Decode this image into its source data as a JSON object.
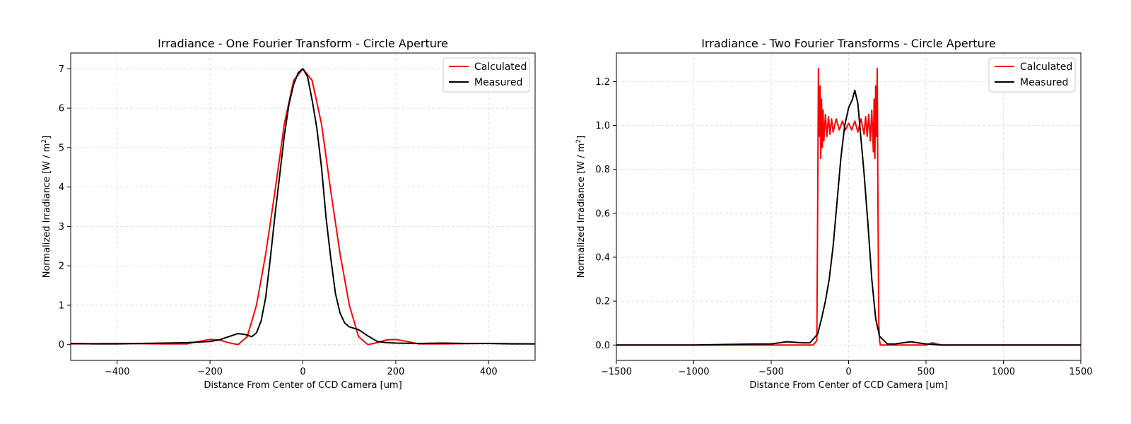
{
  "colors": {
    "calculated": "#ff0000",
    "measured": "#000000"
  },
  "chart_data": [
    {
      "type": "line",
      "title": "Irradiance - One Fourier Transform - Circle Aperture",
      "xlabel": "Distance From Center of CCD Camera [um]",
      "ylabel": "Normalized Irradiance [W / m",
      "ylabel_sup": "2",
      "ylabel_end": "]",
      "xlim": [
        -500,
        500
      ],
      "ylim": [
        -0.4,
        7.4
      ],
      "xticks": [
        -400,
        -200,
        0,
        200,
        400
      ],
      "xtick_labels": [
        "−400",
        "−200",
        "0",
        "200",
        "400"
      ],
      "yticks": [
        0,
        1,
        2,
        3,
        4,
        5,
        6,
        7
      ],
      "ytick_labels": [
        "0",
        "1",
        "2",
        "3",
        "4",
        "5",
        "6",
        "7"
      ],
      "grid": true,
      "legend": "top-right",
      "series": [
        {
          "name": "Calculated",
          "color_key": "calculated",
          "x": [
            -500,
            -400,
            -300,
            -250,
            -220,
            -200,
            -180,
            -160,
            -140,
            -120,
            -100,
            -80,
            -60,
            -40,
            -20,
            0,
            20,
            40,
            60,
            80,
            100,
            120,
            140,
            160,
            180,
            200,
            220,
            250,
            300,
            400,
            500
          ],
          "y": [
            0.02,
            0.03,
            0.02,
            0.02,
            0.09,
            0.13,
            0.12,
            0.05,
            0.0,
            0.2,
            1.0,
            2.3,
            3.9,
            5.6,
            6.7,
            7.0,
            6.7,
            5.6,
            3.9,
            2.3,
            1.0,
            0.2,
            0.0,
            0.05,
            0.12,
            0.13,
            0.09,
            0.02,
            0.02,
            0.03,
            0.02
          ]
        },
        {
          "name": "Measured",
          "color_key": "measured",
          "x": [
            -500,
            -450,
            -400,
            -350,
            -300,
            -250,
            -200,
            -180,
            -160,
            -140,
            -125,
            -110,
            -100,
            -90,
            -80,
            -70,
            -60,
            -50,
            -40,
            -30,
            -20,
            -10,
            0,
            10,
            20,
            30,
            40,
            50,
            60,
            70,
            80,
            90,
            100,
            120,
            140,
            160,
            180,
            200,
            250,
            300,
            350,
            400,
            450,
            500
          ],
          "y": [
            0.03,
            0.02,
            0.02,
            0.03,
            0.04,
            0.05,
            0.08,
            0.12,
            0.2,
            0.28,
            0.26,
            0.2,
            0.3,
            0.6,
            1.2,
            2.2,
            3.3,
            4.3,
            5.3,
            6.1,
            6.6,
            6.9,
            7.0,
            6.8,
            6.2,
            5.5,
            4.5,
            3.2,
            2.2,
            1.3,
            0.8,
            0.55,
            0.45,
            0.38,
            0.22,
            0.08,
            0.05,
            0.04,
            0.03,
            0.04,
            0.03,
            0.03,
            0.02,
            0.02
          ]
        }
      ]
    },
    {
      "type": "line",
      "title": "Irradiance - Two Fourier Transforms - Circle Aperture",
      "xlabel": "Distance From Center of CCD Camera [um]",
      "ylabel": "Normalized Irradiance [W / m",
      "ylabel_sup": "2",
      "ylabel_end": "]",
      "xlim": [
        -1500,
        1500
      ],
      "ylim": [
        -0.07,
        1.33
      ],
      "xticks": [
        -1500,
        -1000,
        -500,
        0,
        500,
        1000,
        1500
      ],
      "xtick_labels": [
        "−1500",
        "−1000",
        "−500",
        "0",
        "500",
        "1000",
        "1500"
      ],
      "yticks": [
        0.0,
        0.2,
        0.4,
        0.6,
        0.8,
        1.0,
        1.2
      ],
      "ytick_labels": [
        "0.0",
        "0.2",
        "0.4",
        "0.6",
        "0.8",
        "1.0",
        "1.2"
      ],
      "grid": true,
      "legend": "top-right",
      "series": [
        {
          "name": "Calculated",
          "color_key": "calculated",
          "x": [
            -1500,
            -1000,
            -500,
            -230,
            -205,
            -200,
            -195,
            -190,
            -185,
            -180,
            -175,
            -170,
            -165,
            -160,
            -150,
            -140,
            -130,
            -120,
            -110,
            -100,
            -80,
            -60,
            -40,
            -20,
            0,
            20,
            40,
            60,
            80,
            100,
            110,
            120,
            130,
            140,
            150,
            160,
            165,
            170,
            175,
            180,
            185,
            190,
            195,
            200,
            205,
            230,
            500,
            540,
            600,
            1000,
            1500
          ],
          "y": [
            0.0,
            0.0,
            0.0,
            0.0,
            0.02,
            0.6,
            1.26,
            0.95,
            1.18,
            0.85,
            1.12,
            0.9,
            1.07,
            0.93,
            1.05,
            0.95,
            1.04,
            0.96,
            1.03,
            0.97,
            1.03,
            0.98,
            1.02,
            0.98,
            1.01,
            0.98,
            1.02,
            0.97,
            1.03,
            0.96,
            1.04,
            0.95,
            1.05,
            0.93,
            1.07,
            0.88,
            1.12,
            0.85,
            1.18,
            0.95,
            1.26,
            0.6,
            0.1,
            0.02,
            0.0,
            0.0,
            0.0,
            0.01,
            0.0,
            0.0,
            0.0
          ]
        },
        {
          "name": "Measured",
          "color_key": "measured",
          "x": [
            -1500,
            -1000,
            -600,
            -500,
            -400,
            -300,
            -250,
            -200,
            -175,
            -150,
            -125,
            -100,
            -75,
            -50,
            -25,
            0,
            25,
            40,
            60,
            75,
            100,
            125,
            150,
            175,
            200,
            250,
            300,
            400,
            500,
            600,
            1000,
            1500
          ],
          "y": [
            0.0,
            0.0,
            0.005,
            0.005,
            0.015,
            0.01,
            0.01,
            0.05,
            0.12,
            0.2,
            0.3,
            0.45,
            0.65,
            0.85,
            1.0,
            1.08,
            1.12,
            1.16,
            1.1,
            0.98,
            0.78,
            0.55,
            0.3,
            0.12,
            0.04,
            0.005,
            0.005,
            0.015,
            0.005,
            0.0,
            0.0,
            0.0
          ]
        }
      ]
    }
  ]
}
